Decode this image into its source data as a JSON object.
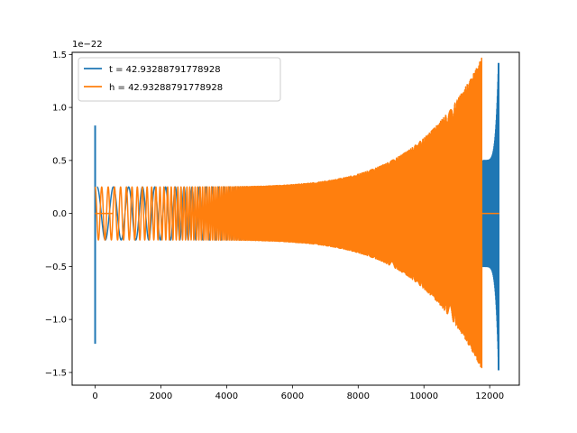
{
  "chart_data": {
    "type": "line",
    "title": "",
    "xlabel": "",
    "ylabel": "",
    "y_offset_label": "1e−22",
    "xlim": [
      -700,
      12900
    ],
    "ylim": [
      -1.62,
      1.52
    ],
    "x_ticks": [
      0,
      2000,
      4000,
      6000,
      8000,
      10000,
      12000
    ],
    "x_tick_labels": [
      "0",
      "2000",
      "4000",
      "6000",
      "8000",
      "10000",
      "12000"
    ],
    "y_ticks": [
      -1.5,
      -1.0,
      -0.5,
      0.0,
      0.5,
      1.0,
      1.5
    ],
    "y_tick_labels": [
      "−1.5",
      "−1.0",
      "−0.5",
      "0.0",
      "0.5",
      "1.0",
      "1.5"
    ],
    "grid": false,
    "legend_position": "top-left",
    "series": [
      {
        "name": "t = 42.93288791778928",
        "color": "#1f77b4",
        "segments": [
          {
            "kind": "spike",
            "x": 0,
            "ymin": -1.23,
            "ymax": 0.83
          },
          {
            "kind": "flat",
            "x": [
              0,
              60
            ],
            "y": 0.0
          },
          {
            "kind": "chirp",
            "x": [
              60,
              11780
            ],
            "amp_start": 0.25,
            "amp_end": 0.5,
            "cycles_start_per_1000": 2.0,
            "cycles_end_per_1000": 40.0
          },
          {
            "kind": "chirp",
            "x": [
              11780,
              12270
            ],
            "amp_start": 0.5,
            "amp_end": 1.47,
            "cycles_start_per_1000": 40.0,
            "cycles_end_per_1000": 140.0
          },
          {
            "kind": "spike",
            "x": 12270,
            "ymin": -1.48,
            "ymax": 1.42
          }
        ]
      },
      {
        "name": "h = 42.93288791778928",
        "color": "#ff7f0e",
        "segments": [
          {
            "kind": "flat",
            "x": [
              0,
              550
            ],
            "y": 0.0
          },
          {
            "kind": "chirp",
            "x": [
              0,
              11760
            ],
            "amp_start": 0.25,
            "amp_end": 1.47,
            "cycles_start_per_1000": 5.0,
            "cycles_end_per_1000": 120.0
          },
          {
            "kind": "flat",
            "x": [
              11760,
              12290
            ],
            "y": 0.0
          }
        ]
      }
    ]
  }
}
